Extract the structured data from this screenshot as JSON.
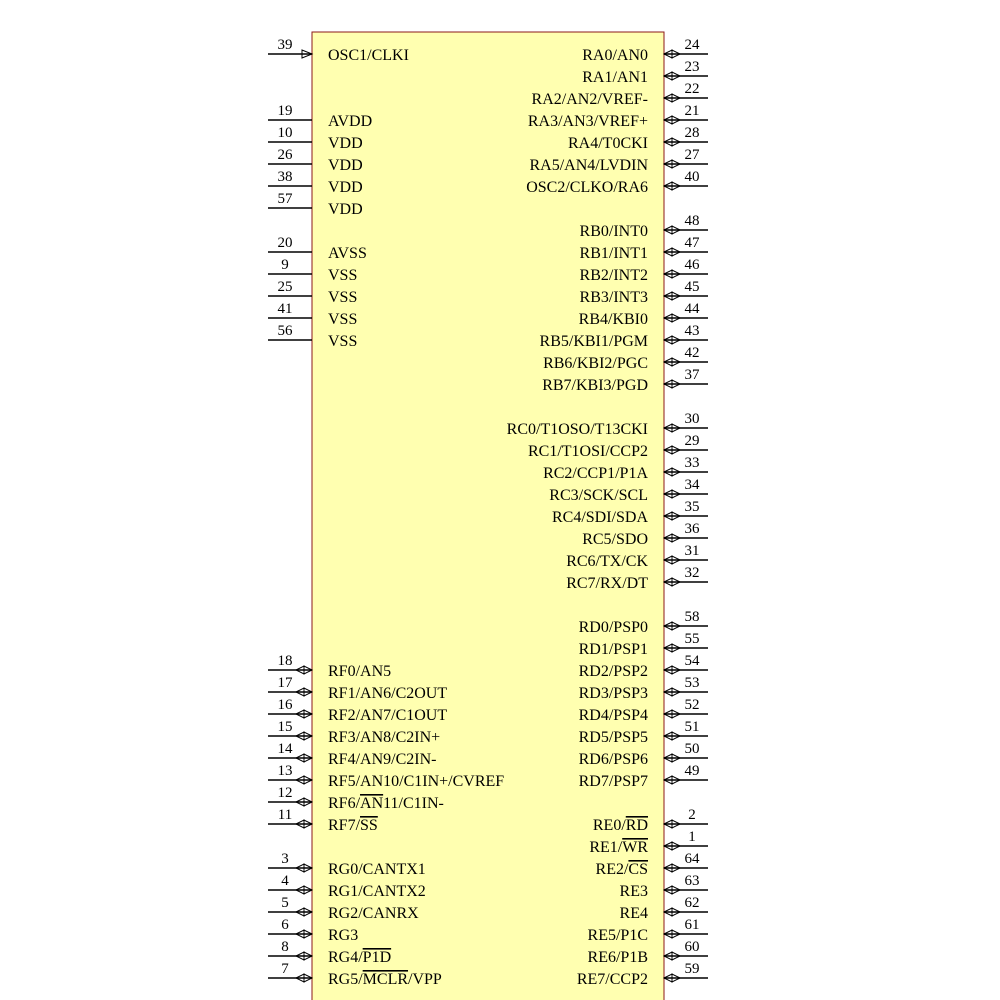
{
  "left": [
    {
      "number": 39,
      "kind": "in",
      "label": [
        {
          "text": "OSC1/CLKI"
        }
      ]
    },
    null,
    null,
    {
      "number": 19,
      "kind": "pwr",
      "label": [
        {
          "text": "AVDD"
        }
      ]
    },
    {
      "number": 10,
      "kind": "pwr",
      "label": [
        {
          "text": "VDD"
        }
      ]
    },
    {
      "number": 26,
      "kind": "pwr",
      "label": [
        {
          "text": "VDD"
        }
      ]
    },
    {
      "number": 38,
      "kind": "pwr",
      "label": [
        {
          "text": "VDD"
        }
      ]
    },
    {
      "number": 57,
      "kind": "pwr",
      "label": [
        {
          "text": "VDD"
        }
      ]
    },
    null,
    {
      "number": 20,
      "kind": "pwr",
      "label": [
        {
          "text": "AVSS"
        }
      ]
    },
    {
      "number": 9,
      "kind": "pwr",
      "label": [
        {
          "text": "VSS"
        }
      ]
    },
    {
      "number": 25,
      "kind": "pwr",
      "label": [
        {
          "text": "VSS"
        }
      ]
    },
    {
      "number": 41,
      "kind": "pwr",
      "label": [
        {
          "text": "VSS"
        }
      ]
    },
    {
      "number": 56,
      "kind": "pwr",
      "label": [
        {
          "text": "VSS"
        }
      ]
    },
    null,
    null,
    null,
    null,
    null,
    null,
    null,
    null,
    null,
    null,
    null,
    null,
    null,
    null,
    {
      "number": 18,
      "kind": "io",
      "label": [
        {
          "text": "RF0/AN5"
        }
      ]
    },
    {
      "number": 17,
      "kind": "io",
      "label": [
        {
          "text": "RF1/AN6/C2OUT"
        }
      ]
    },
    {
      "number": 16,
      "kind": "io",
      "label": [
        {
          "text": "RF2/AN7/C1OUT"
        }
      ]
    },
    {
      "number": 15,
      "kind": "io",
      "label": [
        {
          "text": "RF3/AN8/C2IN+"
        }
      ]
    },
    {
      "number": 14,
      "kind": "io",
      "label": [
        {
          "text": "RF4/AN9/C2IN-"
        }
      ]
    },
    {
      "number": 13,
      "kind": "io",
      "label": [
        {
          "text": "RF5/AN10/C1IN+/CVREF"
        }
      ]
    },
    {
      "number": 12,
      "kind": "io",
      "label": [
        {
          "text": "RF6/"
        },
        {
          "text": "AN",
          "overline": true
        },
        {
          "text": "11/C1IN-"
        }
      ]
    },
    {
      "number": 11,
      "kind": "io",
      "label": [
        {
          "text": "RF7/"
        },
        {
          "text": "SS",
          "overline": true
        }
      ]
    },
    null,
    {
      "number": 3,
      "kind": "io",
      "label": [
        {
          "text": "RG0/CANTX1"
        }
      ]
    },
    {
      "number": 4,
      "kind": "io",
      "label": [
        {
          "text": "RG1/CANTX2"
        }
      ]
    },
    {
      "number": 5,
      "kind": "io",
      "label": [
        {
          "text": "RG2/CANRX"
        }
      ]
    },
    {
      "number": 6,
      "kind": "io",
      "label": [
        {
          "text": "RG3"
        }
      ]
    },
    {
      "number": 8,
      "kind": "io",
      "label": [
        {
          "text": "RG4/"
        },
        {
          "text": "P1D",
          "overline": true
        }
      ]
    },
    {
      "number": 7,
      "kind": "io",
      "label": [
        {
          "text": "RG5/"
        },
        {
          "text": "MCLR",
          "overline": true
        },
        {
          "text": "/VPP"
        }
      ]
    }
  ],
  "right": [
    {
      "number": 24,
      "kind": "io",
      "label": [
        {
          "text": "RA0/AN0"
        }
      ]
    },
    {
      "number": 23,
      "kind": "io",
      "label": [
        {
          "text": "RA1/AN1"
        }
      ]
    },
    {
      "number": 22,
      "kind": "io",
      "label": [
        {
          "text": "RA2/AN2/VREF-"
        }
      ]
    },
    {
      "number": 21,
      "kind": "io",
      "label": [
        {
          "text": "RA3/AN3/VREF+"
        }
      ]
    },
    {
      "number": 28,
      "kind": "io",
      "label": [
        {
          "text": "RA4/T0CKI"
        }
      ]
    },
    {
      "number": 27,
      "kind": "io",
      "label": [
        {
          "text": "RA5/AN4/LVDIN"
        }
      ]
    },
    {
      "number": 40,
      "kind": "io",
      "label": [
        {
          "text": "OSC2/CLKO/RA6"
        }
      ]
    },
    null,
    {
      "number": 48,
      "kind": "io",
      "label": [
        {
          "text": "RB0/INT0"
        }
      ]
    },
    {
      "number": 47,
      "kind": "io",
      "label": [
        {
          "text": "RB1/INT1"
        }
      ]
    },
    {
      "number": 46,
      "kind": "io",
      "label": [
        {
          "text": "RB2/INT2"
        }
      ]
    },
    {
      "number": 45,
      "kind": "io",
      "label": [
        {
          "text": "RB3/INT3"
        }
      ]
    },
    {
      "number": 44,
      "kind": "io",
      "label": [
        {
          "text": "RB4/KBI0"
        }
      ]
    },
    {
      "number": 43,
      "kind": "io",
      "label": [
        {
          "text": "RB5/KBI1/PGM"
        }
      ]
    },
    {
      "number": 42,
      "kind": "io",
      "label": [
        {
          "text": "RB6/KBI2/PGC"
        }
      ]
    },
    {
      "number": 37,
      "kind": "io",
      "label": [
        {
          "text": "RB7/KBI3/PGD"
        }
      ]
    },
    null,
    {
      "number": 30,
      "kind": "io",
      "label": [
        {
          "text": "RC0/T1OSO/T13CKI"
        }
      ]
    },
    {
      "number": 29,
      "kind": "io",
      "label": [
        {
          "text": "RC1/T1OSI/CCP2"
        }
      ]
    },
    {
      "number": 33,
      "kind": "io",
      "label": [
        {
          "text": "RC2/CCP1/P1A"
        }
      ]
    },
    {
      "number": 34,
      "kind": "io",
      "label": [
        {
          "text": "RC3/SCK/SCL"
        }
      ]
    },
    {
      "number": 35,
      "kind": "io",
      "label": [
        {
          "text": "RC4/SDI/SDA"
        }
      ]
    },
    {
      "number": 36,
      "kind": "io",
      "label": [
        {
          "text": "RC5/SDO"
        }
      ]
    },
    {
      "number": 31,
      "kind": "io",
      "label": [
        {
          "text": "RC6/TX/CK"
        }
      ]
    },
    {
      "number": 32,
      "kind": "io",
      "label": [
        {
          "text": "RC7/RX/DT"
        }
      ]
    },
    null,
    {
      "number": 58,
      "kind": "io",
      "label": [
        {
          "text": "RD0/PSP0"
        }
      ]
    },
    {
      "number": 55,
      "kind": "io",
      "label": [
        {
          "text": "RD1/PSP1"
        }
      ]
    },
    {
      "number": 54,
      "kind": "io",
      "label": [
        {
          "text": "RD2/PSP2"
        }
      ]
    },
    {
      "number": 53,
      "kind": "io",
      "label": [
        {
          "text": "RD3/PSP3"
        }
      ]
    },
    {
      "number": 52,
      "kind": "io",
      "label": [
        {
          "text": "RD4/PSP4"
        }
      ]
    },
    {
      "number": 51,
      "kind": "io",
      "label": [
        {
          "text": "RD5/PSP5"
        }
      ]
    },
    {
      "number": 50,
      "kind": "io",
      "label": [
        {
          "text": "RD6/PSP6"
        }
      ]
    },
    {
      "number": 49,
      "kind": "io",
      "label": [
        {
          "text": "RD7/PSP7"
        }
      ]
    },
    null,
    {
      "number": 2,
      "kind": "io",
      "label": [
        {
          "text": "RE0/"
        },
        {
          "text": "RD",
          "overline": true
        }
      ]
    },
    {
      "number": 1,
      "kind": "io",
      "label": [
        {
          "text": "RE1/"
        },
        {
          "text": "WR",
          "overline": true
        }
      ]
    },
    {
      "number": 64,
      "kind": "io",
      "label": [
        {
          "text": "RE2/"
        },
        {
          "text": "CS",
          "overline": true
        }
      ]
    },
    {
      "number": 63,
      "kind": "io",
      "label": [
        {
          "text": "RE3"
        }
      ]
    },
    {
      "number": 62,
      "kind": "io",
      "label": [
        {
          "text": "RE4"
        }
      ]
    },
    {
      "number": 61,
      "kind": "io",
      "label": [
        {
          "text": "RE5/P1C"
        }
      ]
    },
    {
      "number": 60,
      "kind": "io",
      "label": [
        {
          "text": "RE6/P1B"
        }
      ]
    },
    {
      "number": 59,
      "kind": "io",
      "label": [
        {
          "text": "RE7/CCP2"
        }
      ]
    }
  ]
}
